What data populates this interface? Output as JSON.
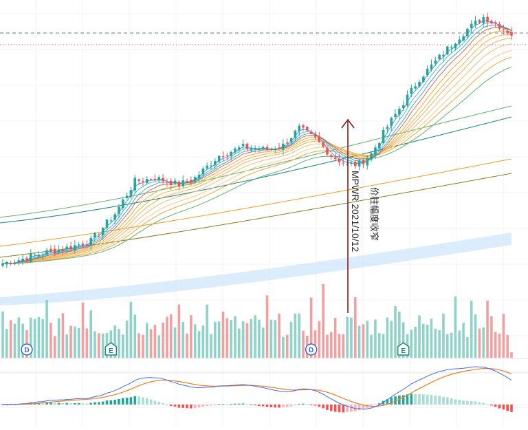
{
  "chart_data": {
    "type": "candlestick",
    "symbol": "MPWR",
    "annotation": {
      "text_cn": "价柱幅度收窄",
      "text_symbol_date": "MPWR 2021/10/12",
      "arrow_color": "#8b1a1a"
    },
    "event_markers": [
      "D",
      "E",
      "D",
      "E"
    ],
    "colors": {
      "up": "#26a69a",
      "down": "#ef5350",
      "vol_up": "#8fd3c8",
      "vol_down": "#f0a0a0",
      "ema_fast": [
        "#3d86f5",
        "#4aa8e6",
        "#2aa9a0",
        "#e05050"
      ],
      "gmma_long": [
        "#f4a52e",
        "#f2b24a",
        "#eeb05a",
        "#f0bd72",
        "#f6c98a",
        "#f4a63a"
      ],
      "ma_green": "#5fb26a",
      "ma_teal": "#1f8a80",
      "ma_orange": "#f39c21",
      "ma_olive": "#8c7a20",
      "band": "#cfe6fb",
      "macd_line": "#3d6af5",
      "signal_line": "#f07c1e",
      "hist_pos_strong": "#26a69a",
      "hist_pos_weak": "#a6dcd3",
      "hist_neg_strong": "#ef5350",
      "hist_neg_weak": "#f7b3b3",
      "dashed_level": "#777777",
      "dotted_level": "#e05050"
    },
    "price_scale": {
      "min": 270,
      "max": 600
    },
    "candles": [],
    "volume": [],
    "macd": {
      "line": [],
      "signal": [],
      "histogram": []
    }
  }
}
